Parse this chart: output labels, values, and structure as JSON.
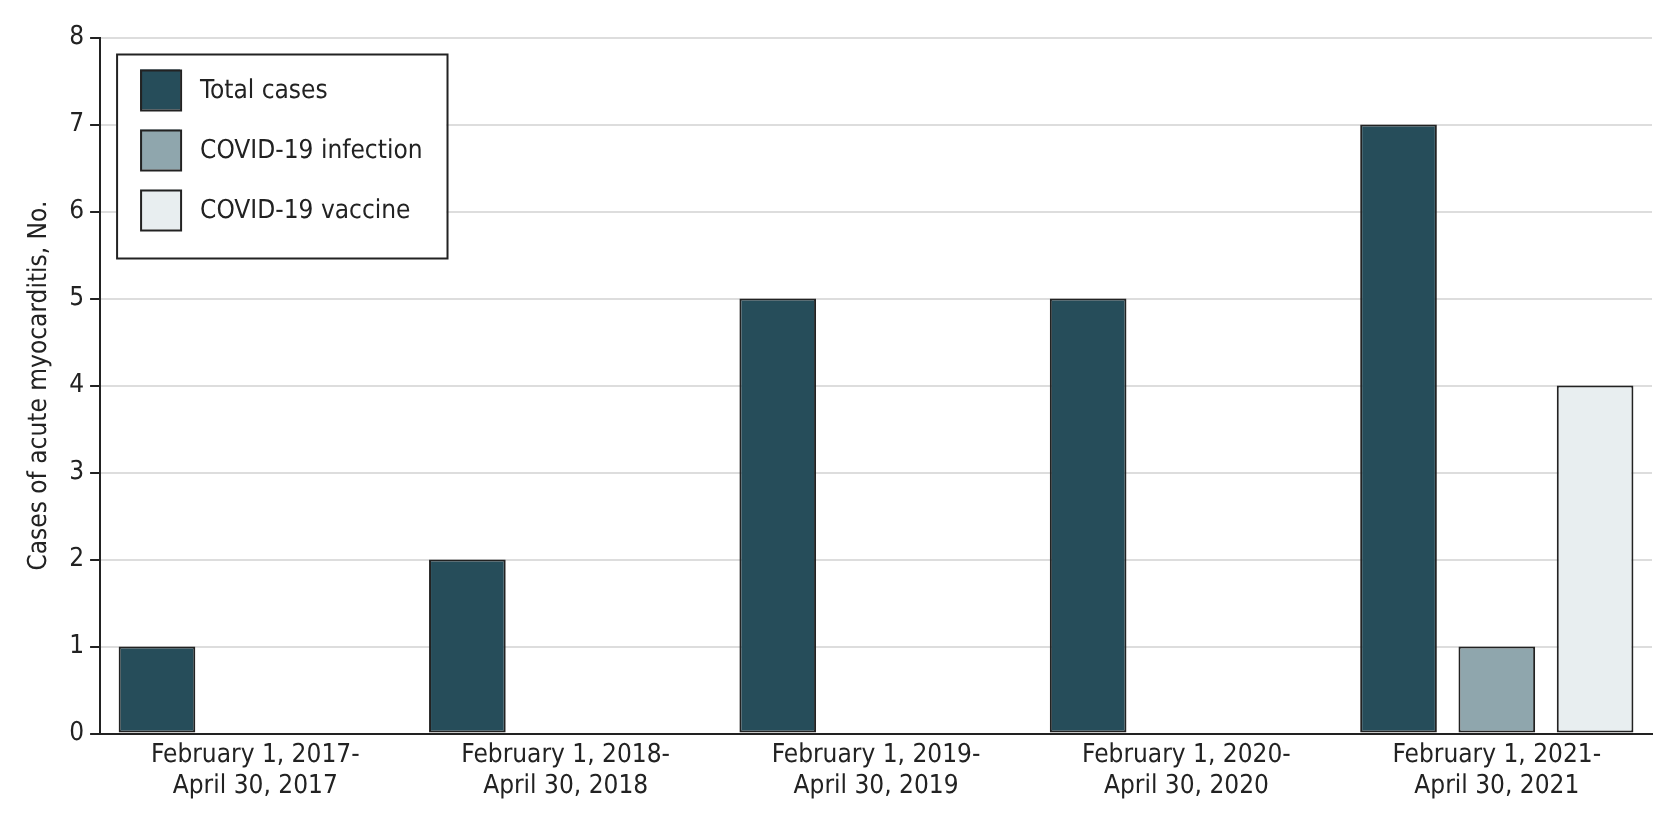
{
  "chart_data": {
    "type": "bar",
    "ylabel": "Cases of acute myocarditis, No.",
    "categories": [
      "February 1, 2017-\nApril 30, 2017",
      "February 1, 2018-\nApril 30, 2018",
      "February 1, 2019-\nApril 30, 2019",
      "February 1, 2020-\nApril 30, 2020",
      "February 1, 2021-\nApril 30, 2021"
    ],
    "series": [
      {
        "name": "Total cases",
        "color": "#264d5a",
        "values": [
          1,
          2,
          5,
          5,
          7
        ]
      },
      {
        "name": "COVID-19 infection",
        "color": "#8fa6ad",
        "values": [
          null,
          null,
          null,
          0,
          1
        ]
      },
      {
        "name": "COVID-19 vaccine",
        "color": "#e8eef0",
        "values": [
          null,
          null,
          null,
          null,
          4
        ]
      }
    ],
    "ylim": [
      0,
      8
    ],
    "yticks": [
      0,
      1,
      2,
      3,
      4,
      5,
      6,
      7,
      8
    ],
    "grid": "y",
    "legend": "top left"
  }
}
